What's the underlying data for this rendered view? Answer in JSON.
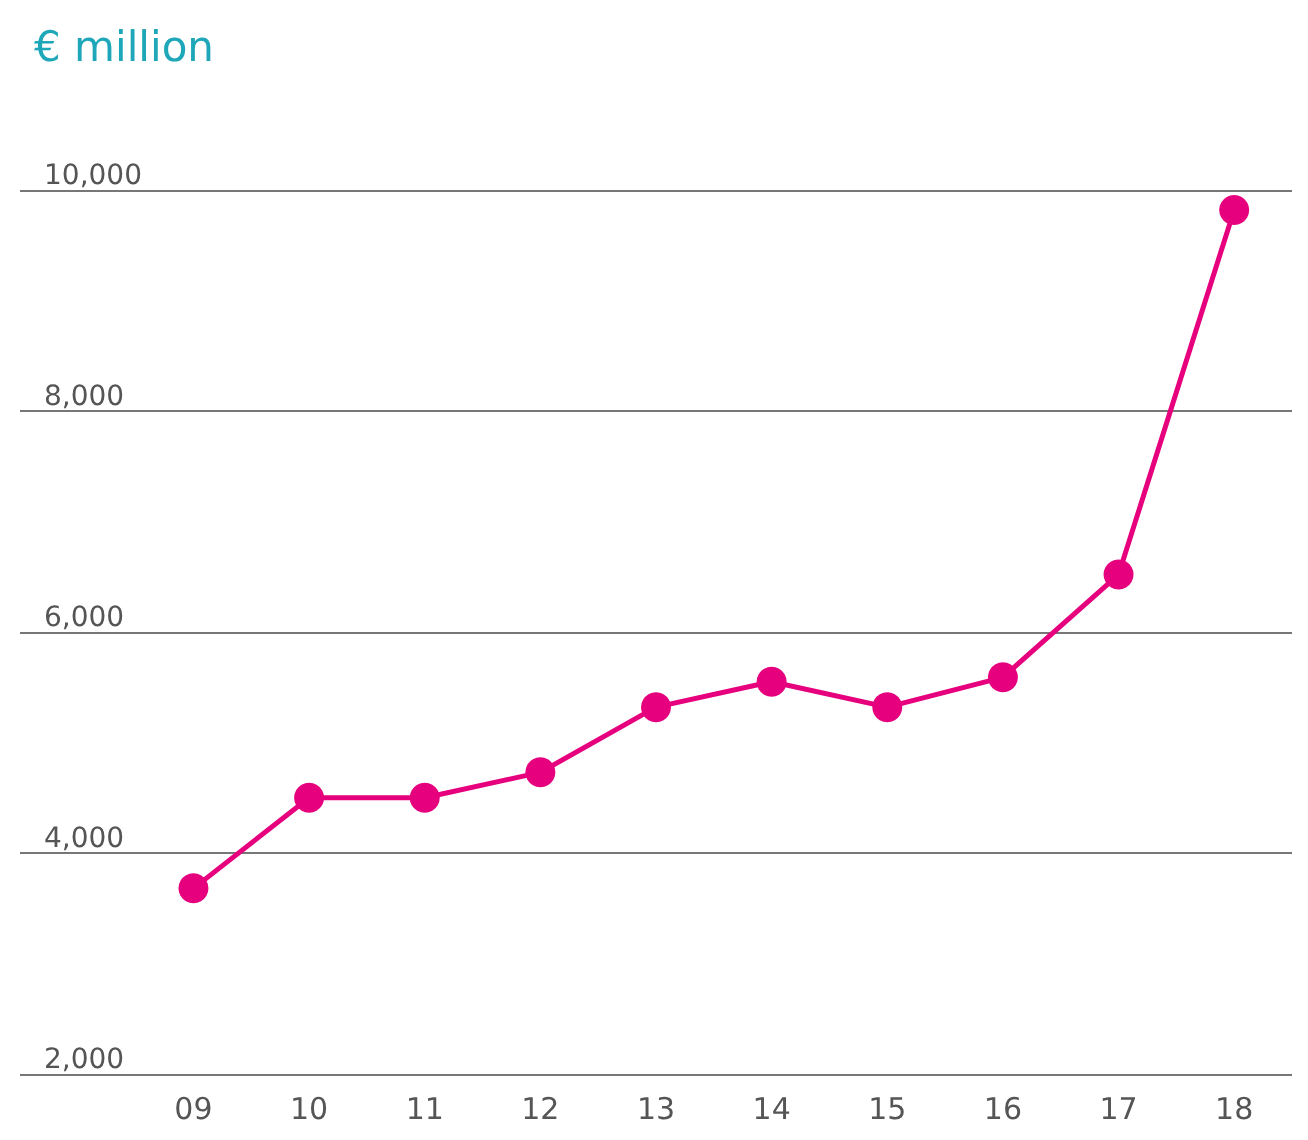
{
  "chart_data": {
    "type": "line",
    "ylabel": "€ million",
    "categories": [
      "09",
      "10",
      "11",
      "12",
      "13",
      "14",
      "15",
      "16",
      "17",
      "18"
    ],
    "series": [
      {
        "color": "#e6007e",
        "values": [
          3680,
          4500,
          4500,
          4730,
          5320,
          5550,
          5320,
          5590,
          6520,
          9820
        ]
      }
    ],
    "ylim": [
      2000,
      10000
    ],
    "yticks": [
      {
        "value": 2000,
        "label": "2,000"
      },
      {
        "value": 4000,
        "label": "4,000"
      },
      {
        "value": 6000,
        "label": "6,000"
      },
      {
        "value": 8000,
        "label": "8,000"
      },
      {
        "value": 10000,
        "label": "10,000"
      }
    ],
    "grid": "y",
    "marker": "circle",
    "line_style": "solid"
  }
}
